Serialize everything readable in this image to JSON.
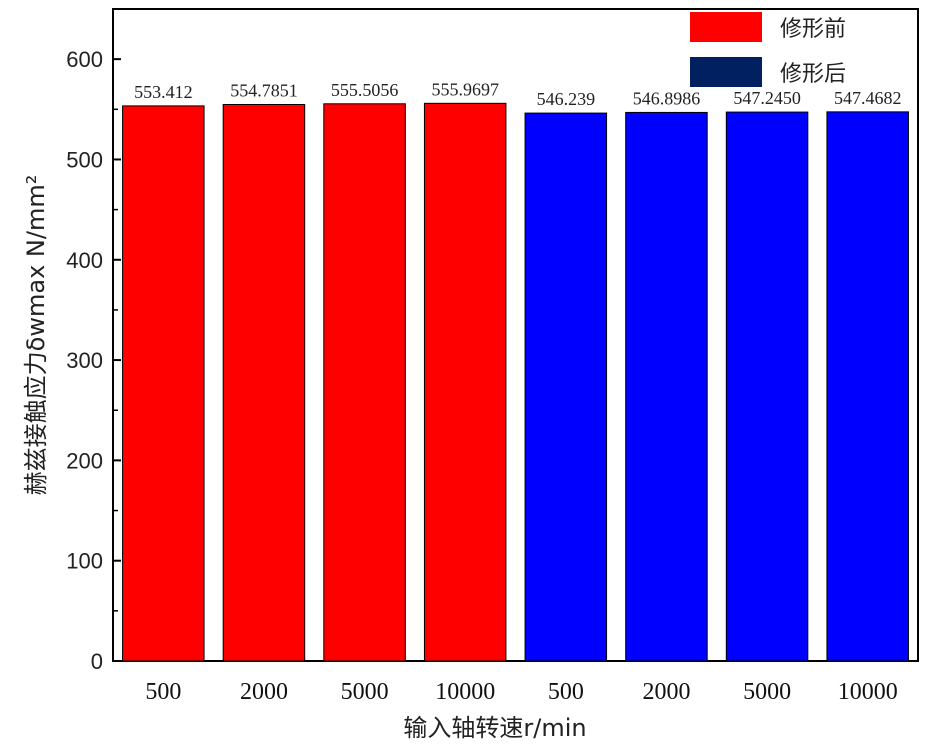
{
  "chart_data": {
    "type": "bar",
    "categories": [
      "500",
      "2000",
      "5000",
      "10000",
      "500",
      "2000",
      "5000",
      "10000"
    ],
    "values": [
      553.412,
      554.7851,
      555.5056,
      555.9697,
      546.239,
      546.8986,
      547.245,
      547.4682
    ],
    "value_labels": [
      "553.412",
      "554.7851",
      "555.5056",
      "555.9697",
      "546.239",
      "546.8986",
      "547.2450",
      "547.4682"
    ],
    "bar_series": [
      0,
      0,
      0,
      0,
      1,
      1,
      1,
      1
    ],
    "series": [
      {
        "name": "修形前",
        "color": "#ff0000",
        "legend_color": "#ff0000"
      },
      {
        "name": "修形后",
        "color": "#0000ff",
        "legend_color": "#002060"
      }
    ],
    "xlabel": "输入轴转速r/min",
    "ylabel": "赫兹接触应力δwmax N/mm²",
    "ylim": [
      0,
      650
    ],
    "yticks": [
      0,
      100,
      200,
      300,
      400,
      500,
      600
    ],
    "grid": false,
    "legend_position": "top-right"
  }
}
